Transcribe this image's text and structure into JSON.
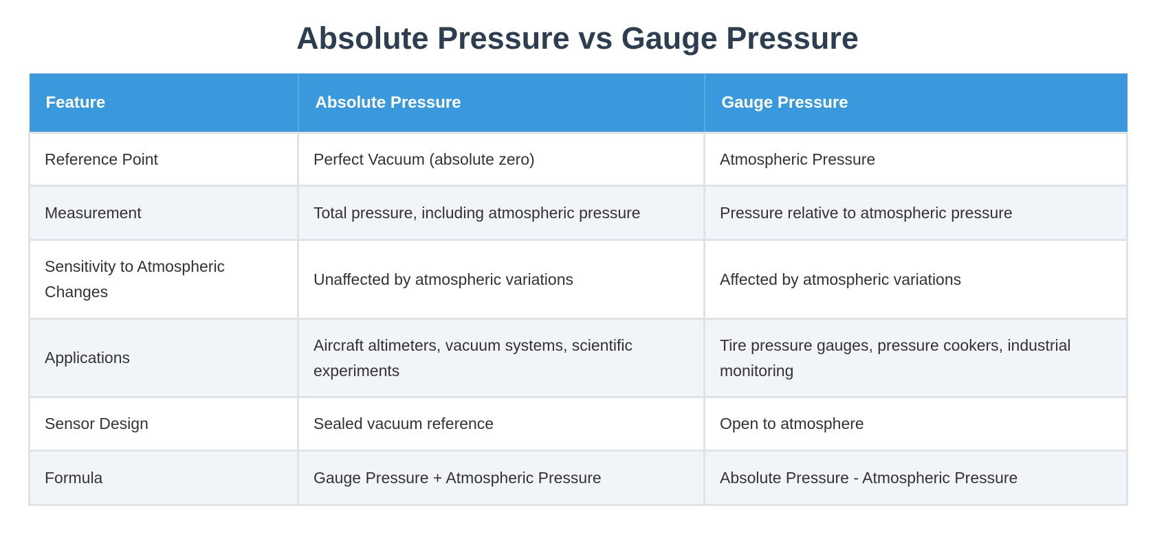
{
  "title": "Absolute Pressure vs Gauge Pressure",
  "table": {
    "headers": [
      "Feature",
      "Absolute Pressure",
      "Gauge Pressure"
    ],
    "rows": [
      [
        "Reference Point",
        "Perfect Vacuum (absolute zero)",
        "Atmospheric Pressure"
      ],
      [
        "Measurement",
        "Total pressure, including atmospheric pressure",
        "Pressure relative to atmospheric pressure"
      ],
      [
        "Sensitivity to Atmospheric Changes",
        "Unaffected by atmospheric variations",
        "Affected by atmospheric variations"
      ],
      [
        "Applications",
        "Aircraft altimeters, vacuum systems, scientific experiments",
        "Tire pressure gauges, pressure cookers, industrial monitoring"
      ],
      [
        "Sensor Design",
        "Sealed vacuum reference",
        "Open to atmosphere"
      ],
      [
        "Formula",
        "Gauge Pressure + Atmospheric Pressure",
        "Absolute Pressure - Atmospheric Pressure"
      ]
    ]
  }
}
